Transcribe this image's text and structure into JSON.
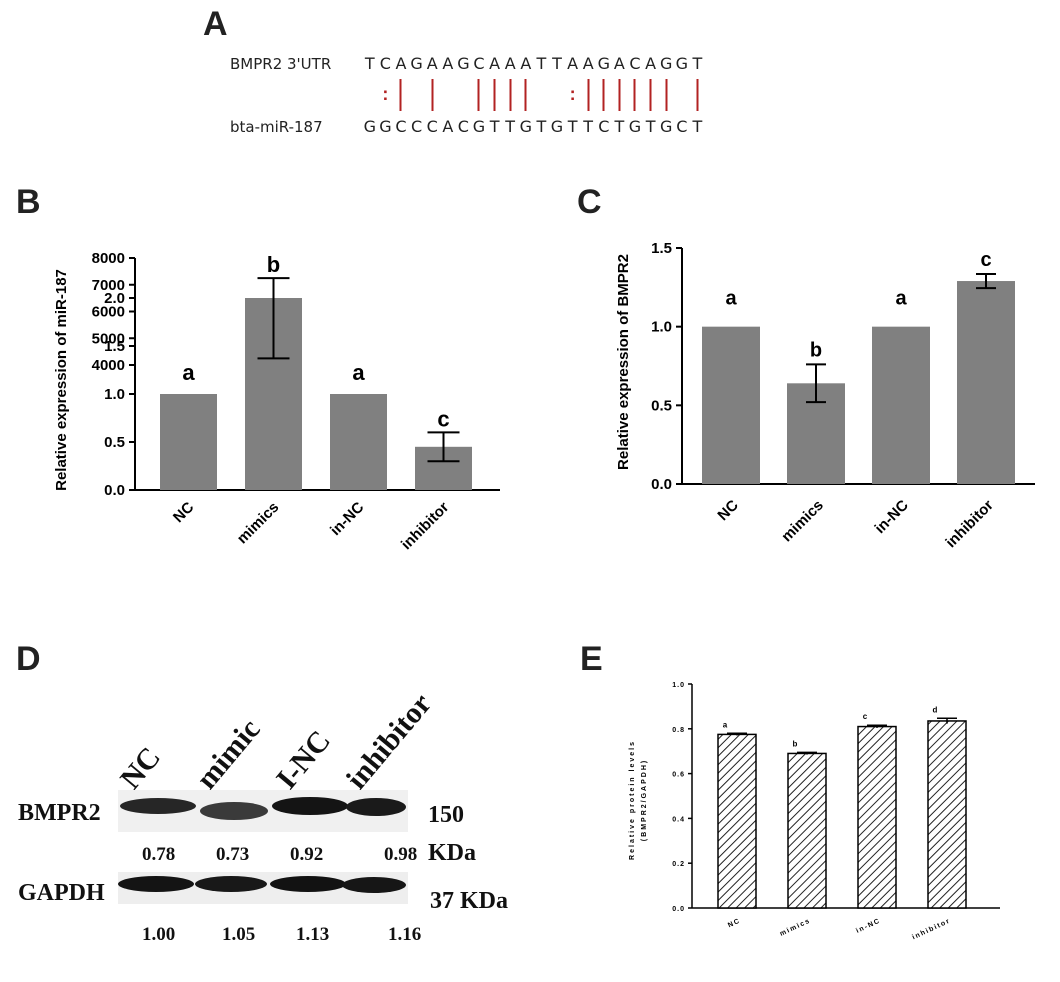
{
  "panels": {
    "A": "A",
    "B": "B",
    "C": "C",
    "D": "D",
    "E": "E"
  },
  "alignment": {
    "top_label": "BMPR2 3'UTR",
    "bottom_label": "bta-miR-187",
    "top_seq": [
      "T",
      "C",
      "A",
      "G",
      "A",
      "A",
      "G",
      "C",
      "A",
      "A",
      "A",
      "T",
      "T",
      "A",
      "A",
      "G",
      "A",
      "C",
      "A",
      "G",
      "G",
      "T"
    ],
    "bottom_seq": [
      "G",
      "G",
      "C",
      "C",
      "C",
      "A",
      "C",
      "G",
      "T",
      "T",
      "G",
      "T",
      "G",
      "T",
      "T",
      "C",
      "T",
      "G",
      "T",
      "G",
      "C",
      "T"
    ],
    "pairs": [
      "",
      ":",
      "|",
      "",
      "|",
      "",
      "",
      "|",
      "|",
      "|",
      "|",
      "",
      "",
      ":",
      "|",
      "|",
      "|",
      "|",
      "|",
      "|",
      "",
      "|"
    ],
    "pair_color": "#b22222"
  },
  "chart_data": [
    {
      "id": "B",
      "type": "bar",
      "ylabel": "Relative  expression of miR-187",
      "categories": [
        "NC",
        "mimics",
        "in-NC",
        "inhibitor"
      ],
      "values": [
        1.0,
        5750,
        1.0,
        0.45
      ],
      "errors": [
        0,
        1500,
        0,
        0.15
      ],
      "letters": [
        "a",
        "b",
        "a",
        "c"
      ],
      "broken_axis": true,
      "lower_range": [
        0,
        2.0
      ],
      "upper_range": [
        4000,
        8000
      ],
      "lower_ticks": [
        "0.0",
        "0.5",
        "1.0",
        "1.5",
        "2.0"
      ],
      "upper_ticks": [
        "4000",
        "5000",
        "6000",
        "7000",
        "8000"
      ],
      "bar_color": "#808080"
    },
    {
      "id": "C",
      "type": "bar",
      "ylabel": "Relative  expression of BMPR2",
      "categories": [
        "NC",
        "mimics",
        "in-NC",
        "inhibitor"
      ],
      "values": [
        1.0,
        0.64,
        1.0,
        1.29
      ],
      "errors": [
        0,
        0.12,
        0,
        0.045
      ],
      "letters": [
        "a",
        "b",
        "a",
        "c"
      ],
      "ylim": [
        0,
        1.5
      ],
      "ticks": [
        "0.0",
        "0.5",
        "1.0",
        "1.5"
      ],
      "bar_color": "#808080"
    },
    {
      "id": "E",
      "type": "bar",
      "ylabel_line1": "Relative  protein levels",
      "ylabel_line2": "(BMPR2/GAPDH)",
      "categories": [
        "NC",
        "mimics",
        "in-NC",
        "inhibitor"
      ],
      "values": [
        0.775,
        0.69,
        0.81,
        0.835
      ],
      "errors": [
        0.005,
        0.005,
        0.006,
        0.012
      ],
      "letters": [
        "a",
        "b",
        "c",
        "d"
      ],
      "ylim": [
        0,
        1.0
      ],
      "ticks": [
        "0.0",
        "0.2",
        "0.4",
        "0.6",
        "0.8",
        "1.0"
      ],
      "pattern": "hatched"
    }
  ],
  "blot": {
    "lanes": [
      "NC",
      "mimic",
      "I-NC",
      "inhibitor"
    ],
    "rows": [
      {
        "label": "BMPR2",
        "size_line1": "150",
        "size_line2": "KDa",
        "values": [
          "0.78",
          "0.73",
          "0.92",
          "0.98"
        ]
      },
      {
        "label": "GAPDH",
        "size_line1": "37 KDa",
        "size_line2": "",
        "values": [
          "1.00",
          "1.05",
          "1.13",
          "1.16"
        ]
      }
    ]
  }
}
